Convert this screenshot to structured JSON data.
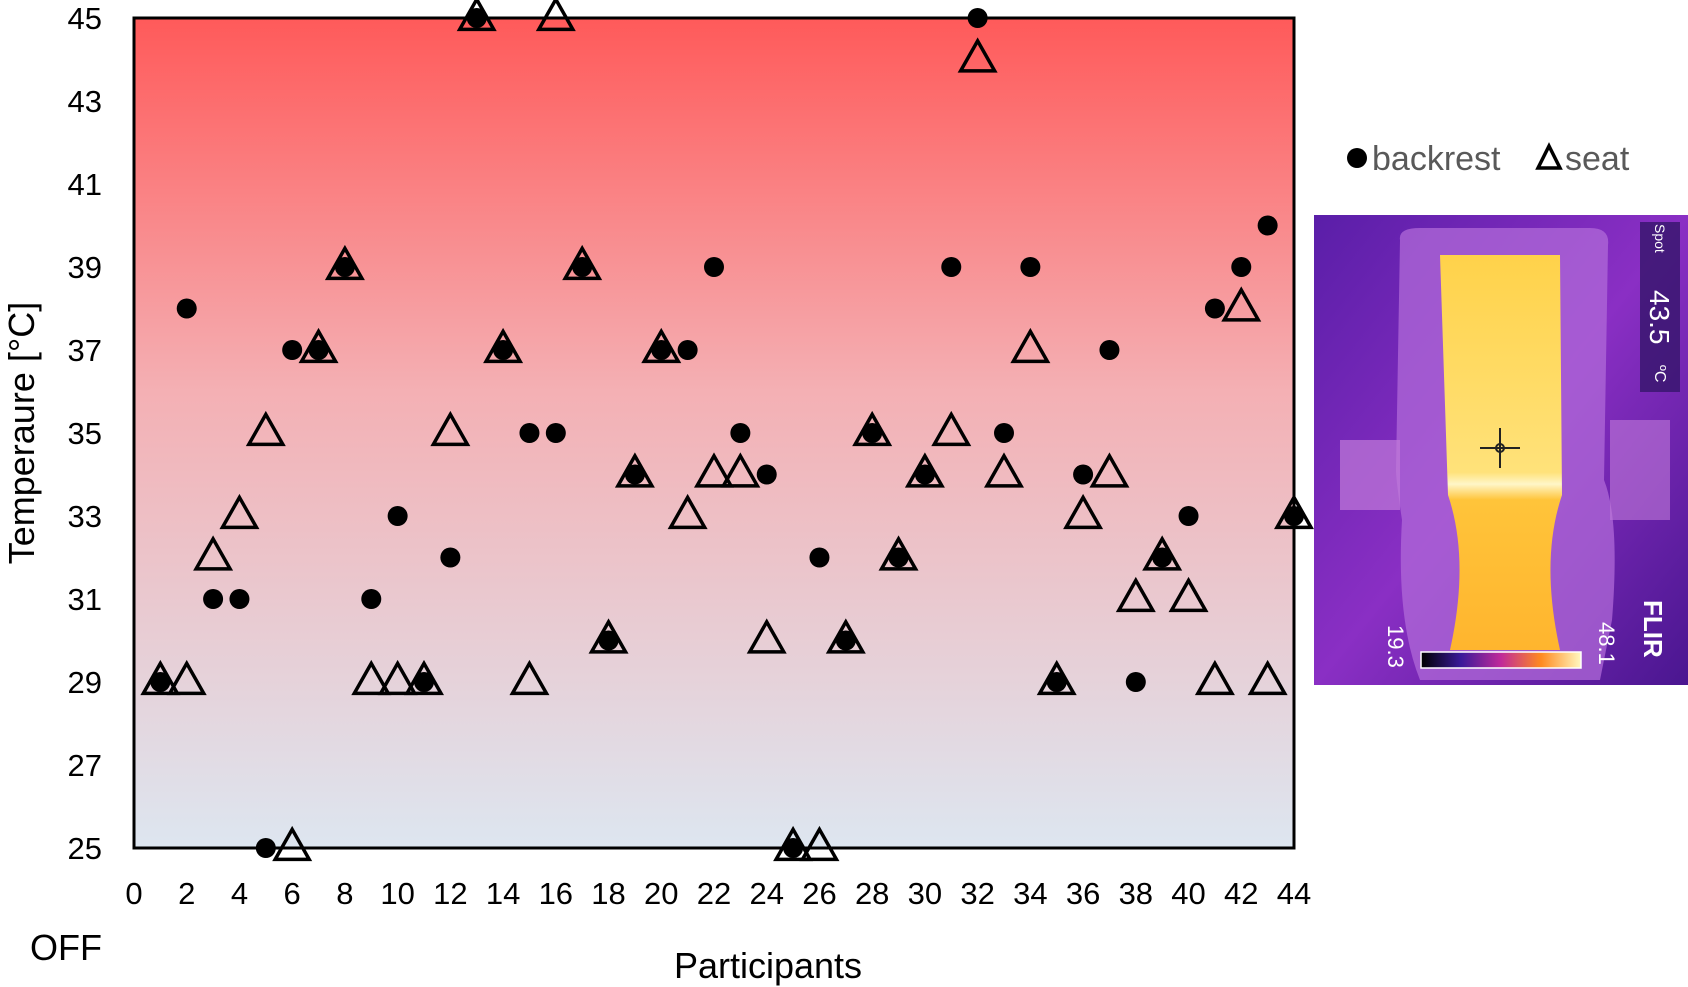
{
  "chart_data": {
    "type": "scatter",
    "xlabel": "Participants",
    "ylabel": "Temperaure [°C]",
    "x_extra_label": "OFF",
    "xlim": [
      0,
      44
    ],
    "ylim": [
      25,
      45
    ],
    "x_ticks": [
      0,
      2,
      4,
      6,
      8,
      10,
      12,
      14,
      16,
      18,
      20,
      22,
      24,
      26,
      28,
      30,
      32,
      34,
      36,
      38,
      40,
      42,
      44
    ],
    "y_ticks": [
      25,
      27,
      29,
      31,
      33,
      35,
      37,
      39,
      41,
      43,
      45
    ],
    "background_gradient": [
      "#ff5a5a",
      "#dde6f0"
    ],
    "legend": [
      {
        "name": "backrest",
        "marker": "circle"
      },
      {
        "name": "seat",
        "marker": "triangle"
      }
    ],
    "series": [
      {
        "name": "backrest",
        "marker": "circle",
        "color": "#000000",
        "x": [
          1,
          2,
          3,
          4,
          5,
          6,
          7,
          8,
          9,
          10,
          11,
          12,
          13,
          14,
          15,
          16,
          17,
          18,
          19,
          20,
          21,
          22,
          23,
          24,
          25,
          26,
          27,
          28,
          29,
          30,
          31,
          32,
          33,
          34,
          35,
          36,
          37,
          38,
          39,
          40,
          41,
          42,
          43,
          44
        ],
        "y": [
          29,
          38,
          31,
          31,
          25,
          37,
          37,
          39,
          31,
          33,
          29,
          32,
          45,
          37,
          35,
          35,
          39,
          30,
          34,
          37,
          37,
          39,
          35,
          34,
          25,
          32,
          30,
          35,
          32,
          34,
          39,
          45,
          35,
          39,
          29,
          34,
          37,
          29,
          32,
          33,
          38,
          39,
          40,
          33
        ]
      },
      {
        "name": "seat",
        "marker": "triangle",
        "color": "#000000",
        "x": [
          1,
          2,
          3,
          4,
          5,
          6,
          7,
          8,
          9,
          10,
          11,
          12,
          13,
          14,
          15,
          16,
          17,
          18,
          19,
          20,
          21,
          22,
          23,
          24,
          25,
          26,
          27,
          28,
          29,
          30,
          31,
          32,
          33,
          34,
          35,
          36,
          37,
          38,
          39,
          40,
          41,
          42,
          43,
          44
        ],
        "y": [
          29,
          29,
          32,
          33,
          35,
          25,
          37,
          39,
          29,
          29,
          29,
          35,
          45,
          37,
          29,
          45,
          39,
          30,
          34,
          37,
          33,
          34,
          34,
          30,
          25,
          25,
          30,
          35,
          32,
          34,
          35,
          44,
          34,
          37,
          29,
          33,
          34,
          31,
          32,
          31,
          29,
          38,
          29,
          33
        ]
      }
    ]
  },
  "inset": {
    "name": "thermal-image",
    "spot_label": "Spot",
    "spot_value": "43.5",
    "spot_unit": "ºC",
    "scale_min": "19.3",
    "scale_max": "48.1",
    "brand": "FLIR"
  }
}
